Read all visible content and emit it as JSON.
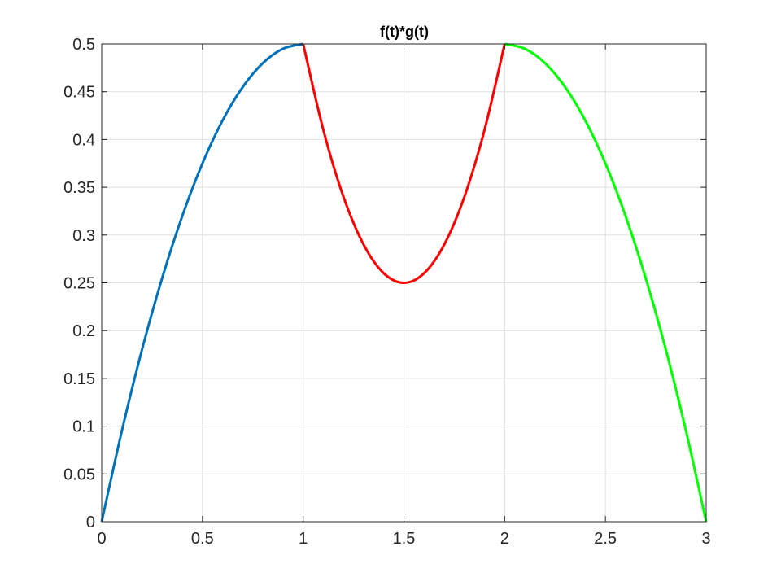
{
  "chart_data": {
    "type": "line",
    "title": "f(t)*g(t)",
    "xlabel": "",
    "ylabel": "",
    "xlim": [
      0,
      3
    ],
    "ylim": [
      0,
      0.5
    ],
    "grid": true,
    "x_ticks": [
      {
        "value": 0,
        "label": "0"
      },
      {
        "value": 0.5,
        "label": "0.5"
      },
      {
        "value": 1,
        "label": "1"
      },
      {
        "value": 1.5,
        "label": "1.5"
      },
      {
        "value": 2,
        "label": "2"
      },
      {
        "value": 2.5,
        "label": "2.5"
      },
      {
        "value": 3,
        "label": "3"
      }
    ],
    "y_ticks": [
      {
        "value": 0,
        "label": "0"
      },
      {
        "value": 0.05,
        "label": "0.05"
      },
      {
        "value": 0.1,
        "label": "0.1"
      },
      {
        "value": 0.15,
        "label": "0.15"
      },
      {
        "value": 0.2,
        "label": "0.2"
      },
      {
        "value": 0.25,
        "label": "0.25"
      },
      {
        "value": 0.3,
        "label": "0.3"
      },
      {
        "value": 0.35,
        "label": "0.35"
      },
      {
        "value": 0.4,
        "label": "0.4"
      },
      {
        "value": 0.45,
        "label": "0.45"
      },
      {
        "value": 0.5,
        "label": "0.5"
      }
    ],
    "series": [
      {
        "color": "#0072BD",
        "x": [
          0,
          0.1,
          0.2,
          0.3,
          0.4,
          0.5,
          0.6,
          0.7,
          0.8,
          0.9,
          1.0
        ],
        "y": [
          0,
          0.095,
          0.18,
          0.255,
          0.32,
          0.375,
          0.42,
          0.455,
          0.48,
          0.495,
          0.5
        ]
      },
      {
        "color": "#FF0000",
        "x": [
          1.0,
          1.1,
          1.2,
          1.3,
          1.4,
          1.5,
          1.6,
          1.7,
          1.8,
          1.9,
          2.0
        ],
        "y": [
          0.5,
          0.41,
          0.34,
          0.29,
          0.26,
          0.25,
          0.26,
          0.29,
          0.34,
          0.41,
          0.5
        ]
      },
      {
        "color": "#00FF00",
        "x": [
          2.0,
          2.1,
          2.2,
          2.3,
          2.4,
          2.5,
          2.6,
          2.7,
          2.8,
          2.9,
          3.0
        ],
        "y": [
          0.5,
          0.495,
          0.48,
          0.455,
          0.42,
          0.375,
          0.32,
          0.255,
          0.18,
          0.095,
          0
        ]
      }
    ]
  }
}
